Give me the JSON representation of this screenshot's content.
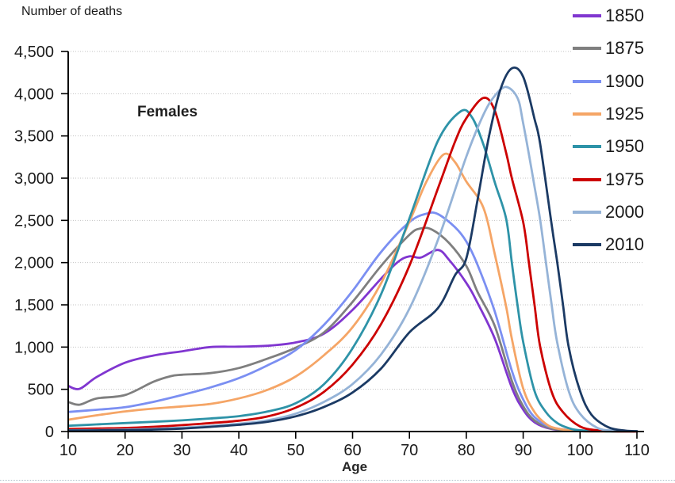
{
  "chart_data": {
    "type": "line",
    "title": "Number of deaths",
    "annotation": "Females",
    "xlabel": "Age",
    "ylabel": "",
    "xlim": [
      10,
      110
    ],
    "ylim": [
      0,
      4500
    ],
    "grid": "horizontal-dotted",
    "legend_position": "right",
    "axis_color": "#000000",
    "grid_color": "#c3c3c3",
    "text_color": "#1a1a1a",
    "x_tick_values": [
      10,
      20,
      30,
      40,
      50,
      60,
      70,
      80,
      90,
      100,
      110
    ],
    "x_tick_labels": [
      "10",
      "20",
      "30",
      "40",
      "50",
      "60",
      "70",
      "80",
      "90",
      "100",
      "110"
    ],
    "y_tick_values": [
      0,
      500,
      1000,
      1500,
      2000,
      2500,
      3000,
      3500,
      4000,
      4500
    ],
    "y_tick_labels": [
      "0",
      "500",
      "1,000",
      "1,500",
      "2,000",
      "2,500",
      "3,000",
      "3,500",
      "4,000",
      "4,500"
    ],
    "series": [
      {
        "name": "1850",
        "color": "#8036d0",
        "points": [
          [
            10,
            540
          ],
          [
            12,
            505
          ],
          [
            15,
            645
          ],
          [
            20,
            815
          ],
          [
            25,
            900
          ],
          [
            30,
            950
          ],
          [
            35,
            1000
          ],
          [
            40,
            1005
          ],
          [
            45,
            1015
          ],
          [
            50,
            1055
          ],
          [
            55,
            1160
          ],
          [
            60,
            1440
          ],
          [
            65,
            1810
          ],
          [
            68,
            2010
          ],
          [
            70,
            2075
          ],
          [
            72,
            2060
          ],
          [
            75,
            2150
          ],
          [
            77,
            2030
          ],
          [
            80,
            1760
          ],
          [
            82,
            1520
          ],
          [
            85,
            1100
          ],
          [
            88,
            520
          ],
          [
            90,
            260
          ],
          [
            92,
            110
          ],
          [
            95,
            30
          ],
          [
            100,
            5
          ],
          [
            105,
            0
          ],
          [
            110,
            0
          ]
        ]
      },
      {
        "name": "1875",
        "color": "#7f7f7f",
        "points": [
          [
            10,
            350
          ],
          [
            12,
            318
          ],
          [
            15,
            392
          ],
          [
            20,
            432
          ],
          [
            25,
            590
          ],
          [
            28,
            655
          ],
          [
            30,
            672
          ],
          [
            35,
            692
          ],
          [
            40,
            752
          ],
          [
            45,
            862
          ],
          [
            50,
            992
          ],
          [
            55,
            1175
          ],
          [
            60,
            1535
          ],
          [
            65,
            1960
          ],
          [
            70,
            2330
          ],
          [
            72,
            2405
          ],
          [
            74,
            2390
          ],
          [
            77,
            2230
          ],
          [
            80,
            1960
          ],
          [
            82,
            1650
          ],
          [
            85,
            1250
          ],
          [
            88,
            600
          ],
          [
            90,
            300
          ],
          [
            92,
            130
          ],
          [
            95,
            35
          ],
          [
            100,
            5
          ],
          [
            105,
            0
          ],
          [
            110,
            0
          ]
        ]
      },
      {
        "name": "1900",
        "color": "#7b8ff2",
        "points": [
          [
            10,
            232
          ],
          [
            15,
            258
          ],
          [
            20,
            288
          ],
          [
            25,
            352
          ],
          [
            30,
            432
          ],
          [
            35,
            522
          ],
          [
            40,
            632
          ],
          [
            45,
            782
          ],
          [
            50,
            965
          ],
          [
            55,
            1265
          ],
          [
            60,
            1665
          ],
          [
            65,
            2125
          ],
          [
            70,
            2480
          ],
          [
            73,
            2580
          ],
          [
            75,
            2575
          ],
          [
            78,
            2420
          ],
          [
            80,
            2250
          ],
          [
            82,
            1970
          ],
          [
            85,
            1420
          ],
          [
            88,
            720
          ],
          [
            90,
            380
          ],
          [
            92,
            170
          ],
          [
            95,
            50
          ],
          [
            100,
            8
          ],
          [
            105,
            0
          ],
          [
            110,
            0
          ]
        ]
      },
      {
        "name": "1925",
        "color": "#f5a566",
        "points": [
          [
            10,
            140
          ],
          [
            15,
            192
          ],
          [
            20,
            238
          ],
          [
            25,
            272
          ],
          [
            30,
            297
          ],
          [
            35,
            327
          ],
          [
            40,
            392
          ],
          [
            45,
            492
          ],
          [
            50,
            652
          ],
          [
            55,
            905
          ],
          [
            60,
            1235
          ],
          [
            65,
            1755
          ],
          [
            70,
            2485
          ],
          [
            73,
            2960
          ],
          [
            76,
            3280
          ],
          [
            78,
            3190
          ],
          [
            80,
            2960
          ],
          [
            83,
            2650
          ],
          [
            85,
            2100
          ],
          [
            87,
            1480
          ],
          [
            88,
            1100
          ],
          [
            90,
            510
          ],
          [
            92,
            230
          ],
          [
            94,
            90
          ],
          [
            96,
            35
          ],
          [
            100,
            5
          ],
          [
            105,
            0
          ],
          [
            110,
            0
          ]
        ]
      },
      {
        "name": "1950",
        "color": "#2e93a8",
        "points": [
          [
            10,
            68
          ],
          [
            15,
            84
          ],
          [
            20,
            100
          ],
          [
            25,
            115
          ],
          [
            30,
            132
          ],
          [
            35,
            155
          ],
          [
            40,
            182
          ],
          [
            45,
            236
          ],
          [
            50,
            336
          ],
          [
            55,
            562
          ],
          [
            60,
            985
          ],
          [
            65,
            1625
          ],
          [
            70,
            2525
          ],
          [
            75,
            3440
          ],
          [
            79,
            3790
          ],
          [
            81,
            3720
          ],
          [
            83,
            3400
          ],
          [
            85,
            2950
          ],
          [
            87,
            2520
          ],
          [
            88,
            2000
          ],
          [
            89,
            1500
          ],
          [
            90,
            1060
          ],
          [
            92,
            480
          ],
          [
            94,
            230
          ],
          [
            96,
            100
          ],
          [
            98,
            40
          ],
          [
            100,
            15
          ],
          [
            105,
            2
          ],
          [
            110,
            0
          ]
        ]
      },
      {
        "name": "1975",
        "color": "#cc0000",
        "points": [
          [
            10,
            30
          ],
          [
            15,
            36
          ],
          [
            20,
            42
          ],
          [
            25,
            56
          ],
          [
            30,
            76
          ],
          [
            35,
            100
          ],
          [
            40,
            128
          ],
          [
            45,
            178
          ],
          [
            50,
            282
          ],
          [
            55,
            472
          ],
          [
            60,
            792
          ],
          [
            65,
            1272
          ],
          [
            70,
            1965
          ],
          [
            75,
            2875
          ],
          [
            78,
            3430
          ],
          [
            80,
            3710
          ],
          [
            83,
            3950
          ],
          [
            85,
            3800
          ],
          [
            87,
            3300
          ],
          [
            88,
            3000
          ],
          [
            90,
            2480
          ],
          [
            91,
            2000
          ],
          [
            92,
            1500
          ],
          [
            93,
            1000
          ],
          [
            95,
            470
          ],
          [
            97,
            230
          ],
          [
            100,
            60
          ],
          [
            103,
            15
          ],
          [
            106,
            3
          ],
          [
            110,
            0
          ]
        ]
      },
      {
        "name": "2000",
        "color": "#95b3d7",
        "points": [
          [
            10,
            15
          ],
          [
            15,
            18
          ],
          [
            20,
            23
          ],
          [
            25,
            32
          ],
          [
            30,
            46
          ],
          [
            35,
            66
          ],
          [
            40,
            92
          ],
          [
            45,
            132
          ],
          [
            50,
            212
          ],
          [
            55,
            352
          ],
          [
            60,
            562
          ],
          [
            65,
            912
          ],
          [
            70,
            1455
          ],
          [
            75,
            2265
          ],
          [
            80,
            3255
          ],
          [
            83,
            3750
          ],
          [
            85,
            3975
          ],
          [
            87,
            4080
          ],
          [
            89,
            3950
          ],
          [
            90,
            3650
          ],
          [
            92,
            2900
          ],
          [
            93,
            2500
          ],
          [
            94,
            2000
          ],
          [
            95,
            1500
          ],
          [
            96,
            1050
          ],
          [
            98,
            480
          ],
          [
            100,
            210
          ],
          [
            103,
            45
          ],
          [
            106,
            10
          ],
          [
            110,
            3
          ]
        ]
      },
      {
        "name": "2010",
        "color": "#1b3a64",
        "points": [
          [
            10,
            12
          ],
          [
            15,
            14
          ],
          [
            20,
            17
          ],
          [
            25,
            23
          ],
          [
            30,
            35
          ],
          [
            35,
            55
          ],
          [
            40,
            80
          ],
          [
            45,
            115
          ],
          [
            50,
            180
          ],
          [
            55,
            292
          ],
          [
            60,
            462
          ],
          [
            65,
            745
          ],
          [
            70,
            1175
          ],
          [
            75,
            1460
          ],
          [
            78,
            1850
          ],
          [
            80,
            2050
          ],
          [
            82,
            2750
          ],
          [
            84,
            3500
          ],
          [
            86,
            4050
          ],
          [
            88,
            4300
          ],
          [
            90,
            4200
          ],
          [
            92,
            3700
          ],
          [
            93,
            3400
          ],
          [
            95,
            2450
          ],
          [
            96,
            2000
          ],
          [
            97,
            1500
          ],
          [
            98,
            1000
          ],
          [
            100,
            480
          ],
          [
            102,
            200
          ],
          [
            105,
            50
          ],
          [
            108,
            10
          ],
          [
            110,
            5
          ]
        ]
      }
    ]
  }
}
